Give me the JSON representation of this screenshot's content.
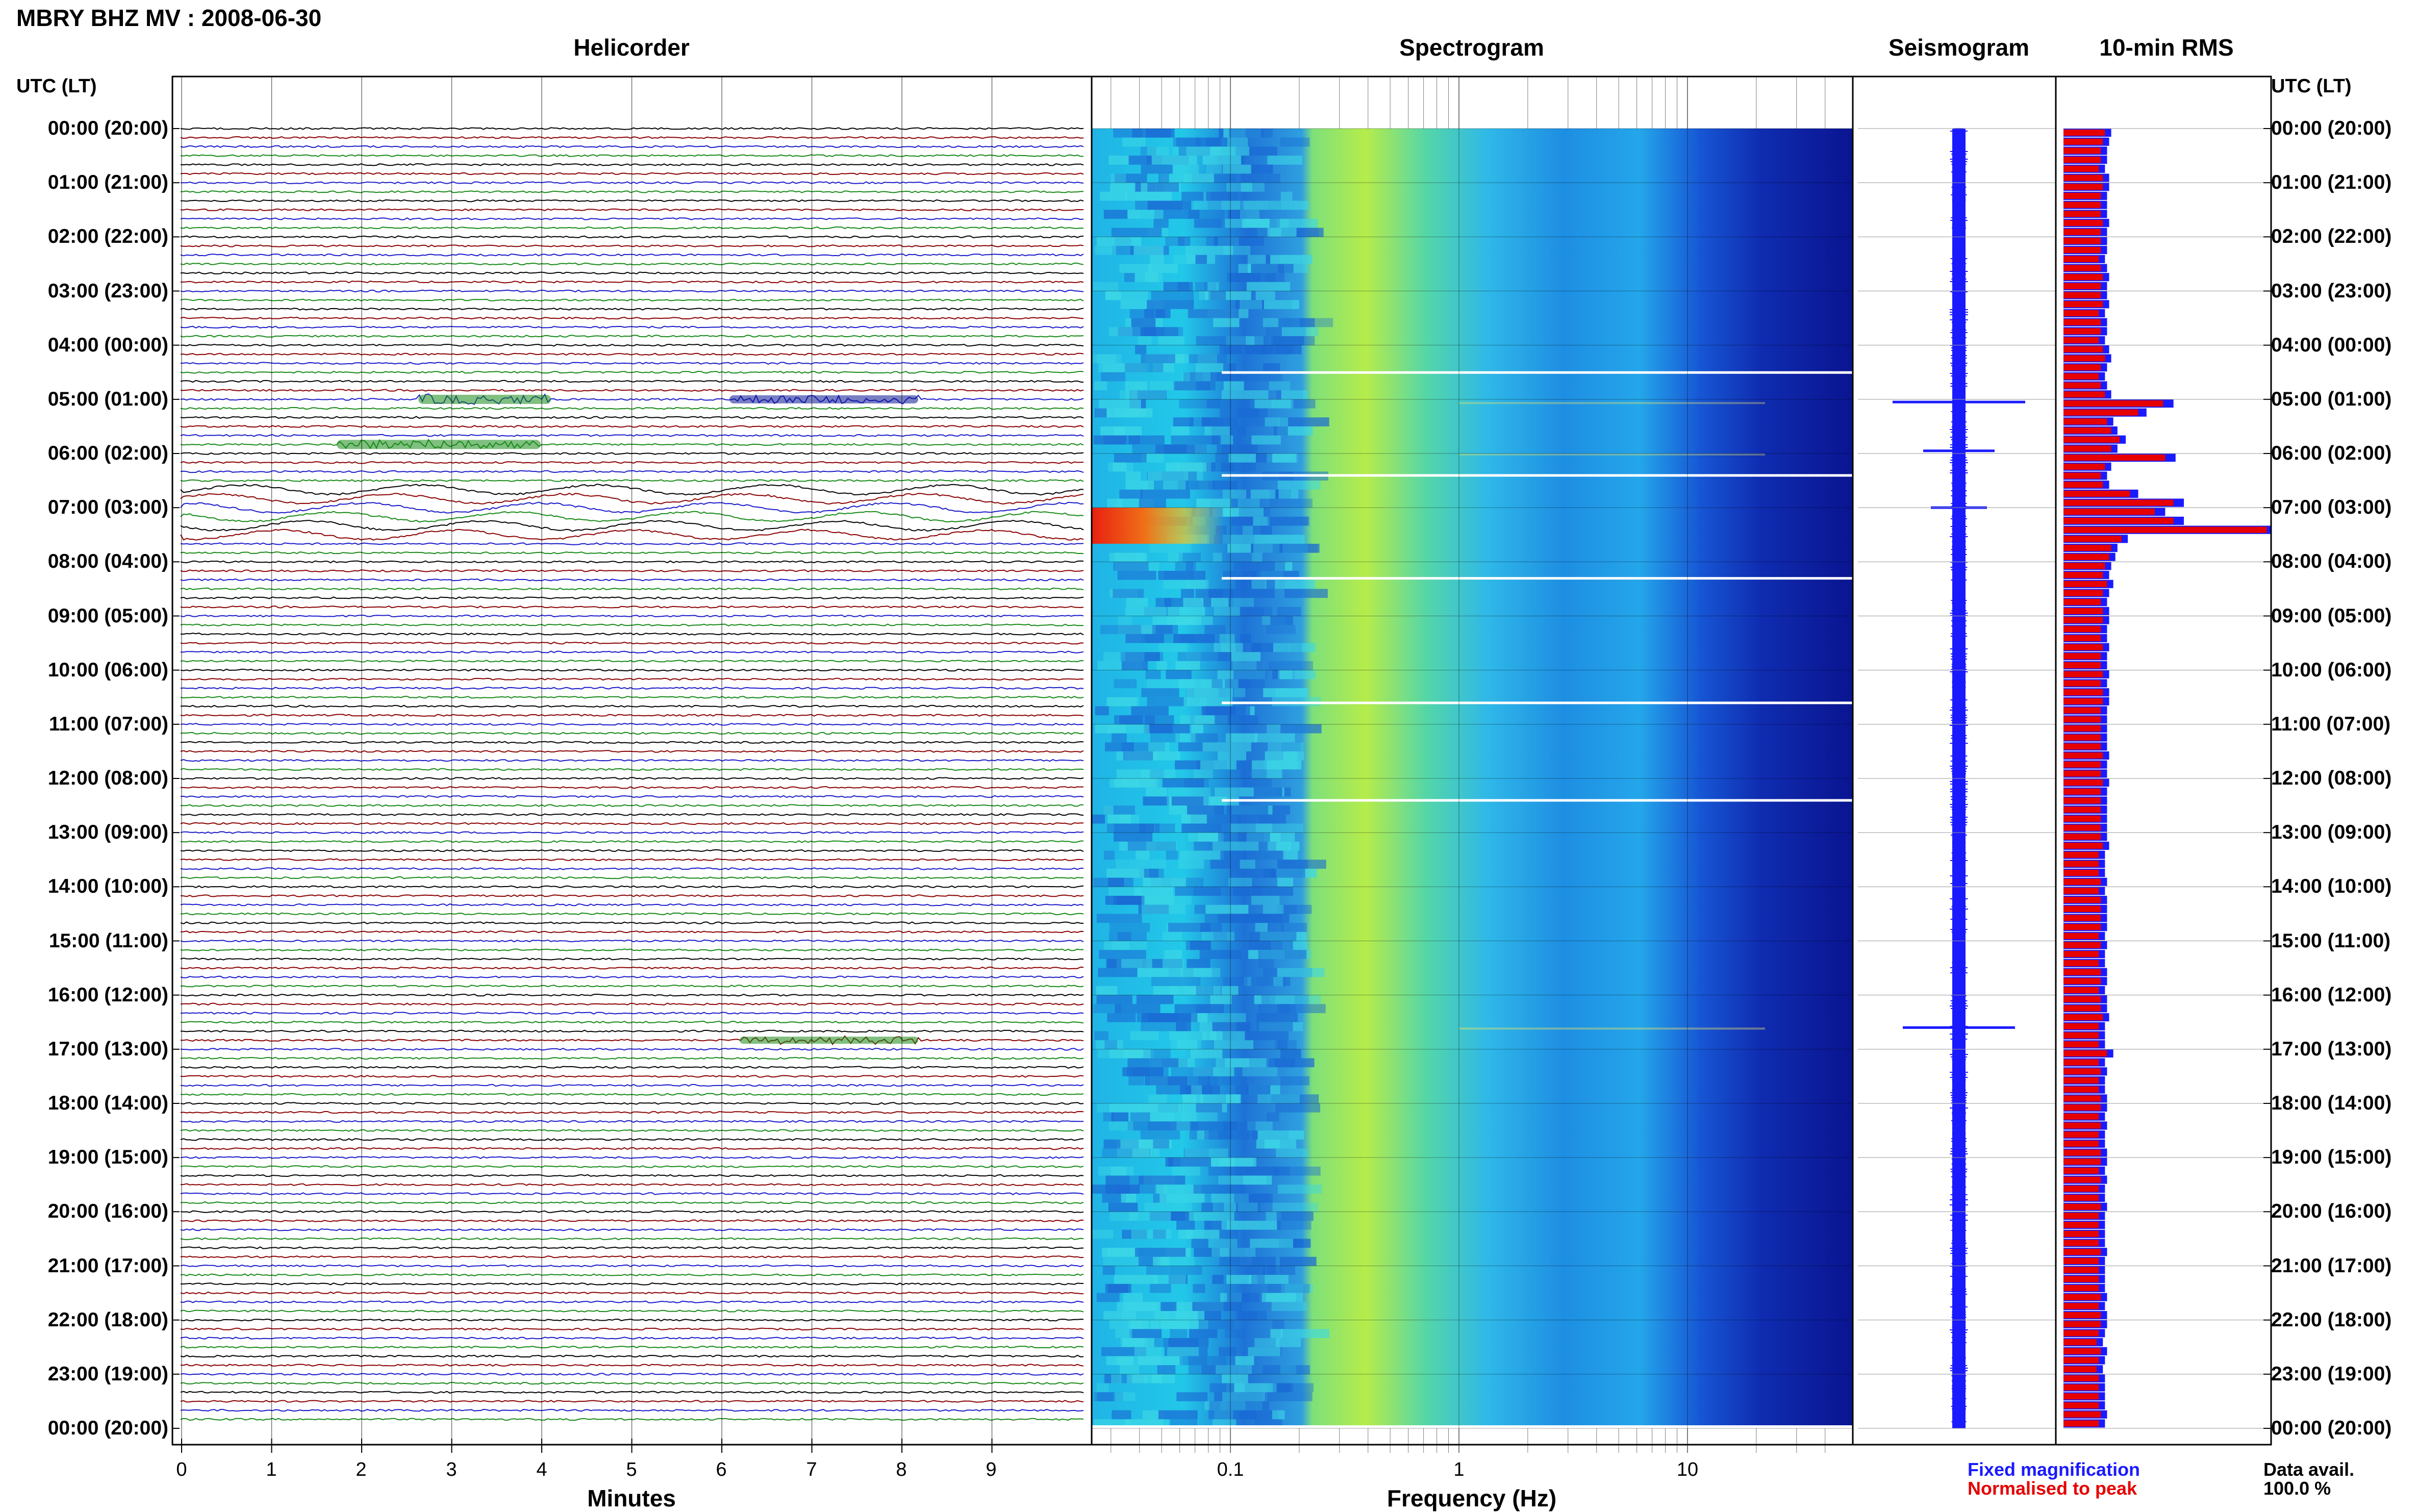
{
  "title": "MBRY BHZ MV : 2008-06-30",
  "panels": {
    "helicorder": "Helicorder",
    "spectrogram": "Spectrogram",
    "seismogram": "Seismogram",
    "rms": "10-min RMS"
  },
  "utc_header": "UTC (LT)",
  "hour_labels": [
    "00:00 (20:00)",
    "01:00 (21:00)",
    "02:00 (22:00)",
    "03:00 (23:00)",
    "04:00 (00:00)",
    "05:00 (01:00)",
    "06:00 (02:00)",
    "07:00 (03:00)",
    "08:00 (04:00)",
    "09:00 (05:00)",
    "10:00 (06:00)",
    "11:00 (07:00)",
    "12:00 (08:00)",
    "13:00 (09:00)",
    "14:00 (10:00)",
    "15:00 (11:00)",
    "16:00 (12:00)",
    "17:00 (13:00)",
    "18:00 (14:00)",
    "19:00 (15:00)",
    "20:00 (16:00)",
    "21:00 (17:00)",
    "22:00 (18:00)",
    "23:00 (19:00)",
    "00:00 (20:00)"
  ],
  "helicorder_axis": {
    "label": "Minutes",
    "ticks": [
      "0",
      "1",
      "2",
      "3",
      "4",
      "5",
      "6",
      "7",
      "8",
      "9"
    ]
  },
  "spectrogram_axis": {
    "label": "Frequency (Hz)",
    "ticks": [
      "0.1",
      "1",
      "10"
    ],
    "scale": "log"
  },
  "legend": {
    "fixed": "Fixed magnification",
    "normalised": "Normalised to peak"
  },
  "data_availability": {
    "label": "Data avail.",
    "value": "100.0 %"
  },
  "colors": {
    "trace_cycle": [
      "#000000",
      "#8b0000",
      "#1a1acc",
      "#178a17"
    ],
    "rms_fixed": "#1a1aff",
    "rms_normalised": "#e60000",
    "seismogram": "#1a1aff"
  },
  "chart_data": {
    "type": "bar",
    "title": "10-min RMS",
    "series": [
      {
        "name": "Fixed magnification",
        "values": [
          0.23,
          0.22,
          0.21,
          0.21,
          0.2,
          0.22,
          0.22,
          0.21,
          0.21,
          0.21,
          0.22,
          0.21,
          0.21,
          0.21,
          0.2,
          0.21,
          0.22,
          0.21,
          0.21,
          0.22,
          0.2,
          0.21,
          0.21,
          0.2,
          0.22,
          0.23,
          0.21,
          0.2,
          0.21,
          0.23,
          0.53,
          0.4,
          0.24,
          0.26,
          0.3,
          0.26,
          0.54,
          0.23,
          0.21,
          0.22,
          0.36,
          0.58,
          0.49,
          0.58,
          1.0,
          0.31,
          0.26,
          0.25,
          0.23,
          0.22,
          0.24,
          0.22,
          0.21,
          0.22,
          0.22,
          0.21,
          0.21,
          0.22,
          0.21,
          0.21,
          0.22,
          0.21,
          0.22,
          0.22,
          0.21,
          0.21,
          0.21,
          0.21,
          0.21,
          0.22,
          0.21,
          0.21,
          0.22,
          0.21,
          0.21,
          0.21,
          0.21,
          0.21,
          0.21,
          0.22,
          0.2,
          0.2,
          0.2,
          0.21,
          0.2,
          0.21,
          0.21,
          0.21,
          0.21,
          0.2,
          0.21,
          0.2,
          0.2,
          0.21,
          0.21,
          0.2,
          0.21,
          0.21,
          0.22,
          0.2,
          0.2,
          0.2,
          0.24,
          0.2,
          0.21,
          0.2,
          0.2,
          0.21,
          0.21,
          0.2,
          0.21,
          0.2,
          0.2,
          0.21,
          0.21,
          0.2,
          0.21,
          0.2,
          0.2,
          0.21,
          0.2,
          0.2,
          0.2,
          0.2,
          0.21,
          0.2,
          0.2,
          0.2,
          0.2,
          0.21,
          0.2,
          0.21,
          0.21,
          0.2,
          0.19,
          0.21,
          0.2,
          0.19,
          0.2,
          0.2,
          0.2,
          0.2,
          0.21,
          0.2
        ]
      },
      {
        "name": "Normalised to peak",
        "values": [
          0.2,
          0.19,
          0.18,
          0.18,
          0.17,
          0.19,
          0.19,
          0.18,
          0.18,
          0.18,
          0.19,
          0.18,
          0.18,
          0.18,
          0.17,
          0.18,
          0.19,
          0.18,
          0.18,
          0.19,
          0.17,
          0.18,
          0.18,
          0.17,
          0.19,
          0.2,
          0.18,
          0.17,
          0.18,
          0.2,
          0.48,
          0.36,
          0.21,
          0.23,
          0.27,
          0.23,
          0.49,
          0.2,
          0.18,
          0.19,
          0.32,
          0.53,
          0.44,
          0.53,
          0.98,
          0.28,
          0.23,
          0.22,
          0.2,
          0.19,
          0.21,
          0.19,
          0.18,
          0.19,
          0.19,
          0.18,
          0.18,
          0.19,
          0.18,
          0.18,
          0.19,
          0.18,
          0.19,
          0.19,
          0.18,
          0.18,
          0.18,
          0.18,
          0.18,
          0.19,
          0.18,
          0.18,
          0.19,
          0.18,
          0.18,
          0.18,
          0.18,
          0.18,
          0.18,
          0.19,
          0.17,
          0.17,
          0.17,
          0.18,
          0.17,
          0.18,
          0.18,
          0.18,
          0.18,
          0.17,
          0.18,
          0.17,
          0.17,
          0.18,
          0.18,
          0.17,
          0.18,
          0.18,
          0.19,
          0.17,
          0.17,
          0.17,
          0.21,
          0.17,
          0.18,
          0.17,
          0.17,
          0.18,
          0.18,
          0.17,
          0.18,
          0.17,
          0.17,
          0.18,
          0.18,
          0.17,
          0.18,
          0.17,
          0.17,
          0.18,
          0.17,
          0.17,
          0.17,
          0.17,
          0.18,
          0.17,
          0.17,
          0.17,
          0.17,
          0.18,
          0.17,
          0.18,
          0.18,
          0.17,
          0.16,
          0.18,
          0.17,
          0.16,
          0.17,
          0.17,
          0.17,
          0.17,
          0.18,
          0.17
        ]
      }
    ],
    "events_utc": [
      "05:00",
      "06:00",
      "07:05",
      "16:40"
    ]
  }
}
